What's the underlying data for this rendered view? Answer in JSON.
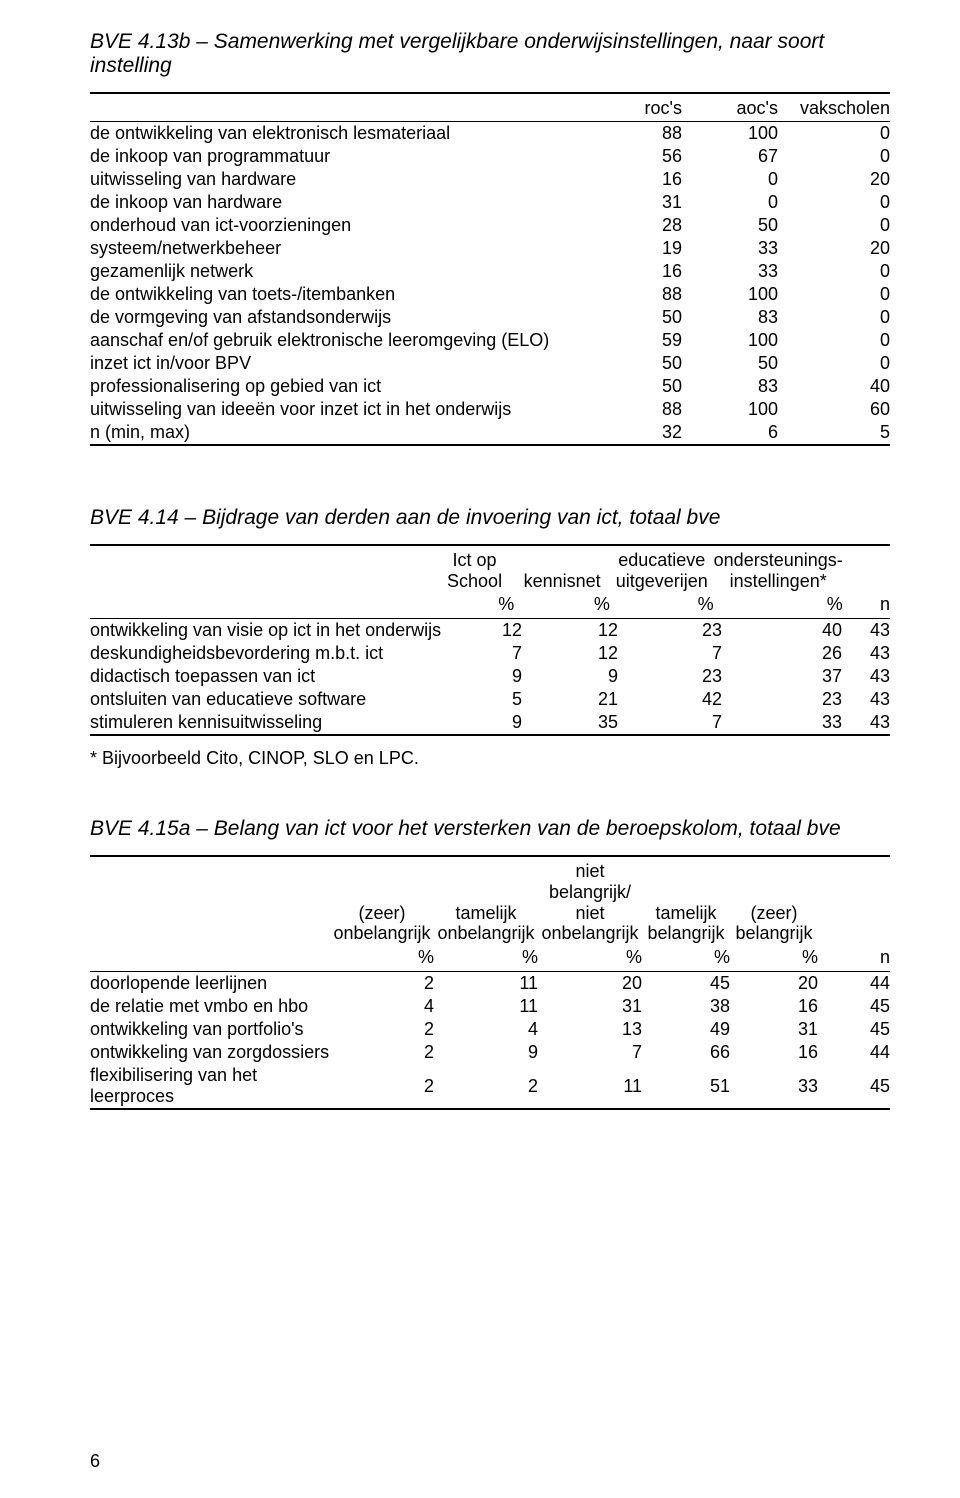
{
  "page_number": "6",
  "t1": {
    "title": "BVE 4.13b – Samenwerking met vergelijkbare onderwijsinstellingen, naar soort instelling",
    "columns": [
      "",
      "roc's",
      "aoc's",
      "vakscholen"
    ],
    "rows": [
      [
        "de ontwikkeling van elektronisch lesmateriaal",
        "88",
        "100",
        "0"
      ],
      [
        "de inkoop van programmatuur",
        "56",
        "67",
        "0"
      ],
      [
        "uitwisseling van hardware",
        "16",
        "0",
        "20"
      ],
      [
        "de inkoop van hardware",
        "31",
        "0",
        "0"
      ],
      [
        "onderhoud van ict-voorzieningen",
        "28",
        "50",
        "0"
      ],
      [
        "systeem/netwerkbeheer",
        "19",
        "33",
        "20"
      ],
      [
        "gezamenlijk netwerk",
        "16",
        "33",
        "0"
      ],
      [
        "de ontwikkeling van toets-/itembanken",
        "88",
        "100",
        "0"
      ],
      [
        "de vormgeving van afstandsonderwijs",
        "50",
        "83",
        "0"
      ],
      [
        "aanschaf en/of gebruik elektronische leeromgeving (ELO)",
        "59",
        "100",
        "0"
      ],
      [
        "inzet ict in/voor BPV",
        "50",
        "50",
        "0"
      ],
      [
        "professionalisering op gebied van ict",
        "50",
        "83",
        "40"
      ],
      [
        "uitwisseling van ideeën voor inzet ict in het onderwijs",
        "88",
        "100",
        "60"
      ],
      [
        "n (min, max)",
        "32",
        "6",
        "5"
      ]
    ]
  },
  "t2": {
    "title": "BVE 4.14 – Bijdrage van derden aan de invoering van ict, totaal bve",
    "head1": [
      "",
      "Ict op\nSchool",
      "kennisnet",
      "educatieve\nuitgeverijen",
      "ondersteunings-\ninstellingen*",
      ""
    ],
    "head2": [
      "",
      "%",
      "%",
      "%",
      "%",
      "n"
    ],
    "rows": [
      [
        "ontwikkeling van visie op ict in het onderwijs",
        "12",
        "12",
        "23",
        "40",
        "43"
      ],
      [
        "deskundigheidsbevordering m.b.t. ict",
        "7",
        "12",
        "7",
        "26",
        "43"
      ],
      [
        "didactisch toepassen van ict",
        "9",
        "9",
        "23",
        "37",
        "43"
      ],
      [
        "ontsluiten van educatieve software",
        "5",
        "21",
        "42",
        "23",
        "43"
      ],
      [
        "stimuleren kennisuitwisseling",
        "9",
        "35",
        "7",
        "33",
        "43"
      ]
    ],
    "footnote": "* Bijvoorbeeld Cito, CINOP, SLO en LPC."
  },
  "t3": {
    "title": "BVE 4.15a – Belang van ict voor het versterken van de beroepskolom, totaal bve",
    "head1": [
      "",
      "(zeer)\nonbelangrijk",
      "tamelijk\nonbelangrijk",
      "niet\nbelangrijk/\nniet\nonbelangrijk",
      "tamelijk\nbelangrijk",
      "(zeer)\nbelangrijk",
      ""
    ],
    "head2": [
      "",
      "%",
      "%",
      "%",
      "%",
      "%",
      "n"
    ],
    "rows": [
      [
        "doorlopende leerlijnen",
        "2",
        "11",
        "20",
        "45",
        "20",
        "44"
      ],
      [
        "de relatie met vmbo en hbo",
        "4",
        "11",
        "31",
        "38",
        "16",
        "45"
      ],
      [
        "ontwikkeling van portfolio's",
        "2",
        "4",
        "13",
        "49",
        "31",
        "45"
      ],
      [
        "ontwikkeling van zorgdossiers",
        "2",
        "9",
        "7",
        "66",
        "16",
        "44"
      ],
      [
        "flexibilisering van het leerproces",
        "2",
        "2",
        "11",
        "51",
        "33",
        "45"
      ]
    ]
  }
}
